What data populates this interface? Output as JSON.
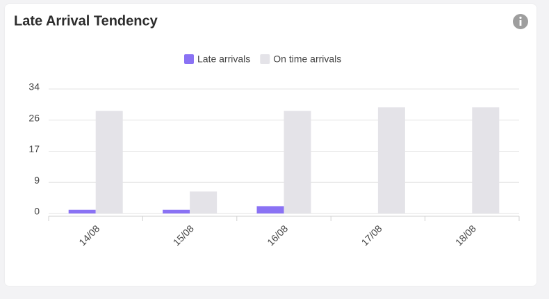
{
  "chart_data": {
    "type": "bar",
    "title": "Late Arrival Tendency",
    "categories": [
      "14/08",
      "15/08",
      "16/08",
      "17/08",
      "18/08"
    ],
    "series": [
      {
        "name": "Late arrivals",
        "color": "#8a72f4",
        "values": [
          1,
          1,
          2,
          0,
          0
        ]
      },
      {
        "name": "On time arrivals",
        "color": "#e4e3e8",
        "values": [
          28,
          6,
          28,
          29,
          29
        ]
      }
    ],
    "ylim": [
      0,
      34
    ],
    "yticks": [
      0,
      {
        "value": 8.5,
        "label": "9"
      },
      17,
      {
        "value": 25.5,
        "label": "26"
      },
      34
    ],
    "grid": true,
    "legend": "top"
  }
}
